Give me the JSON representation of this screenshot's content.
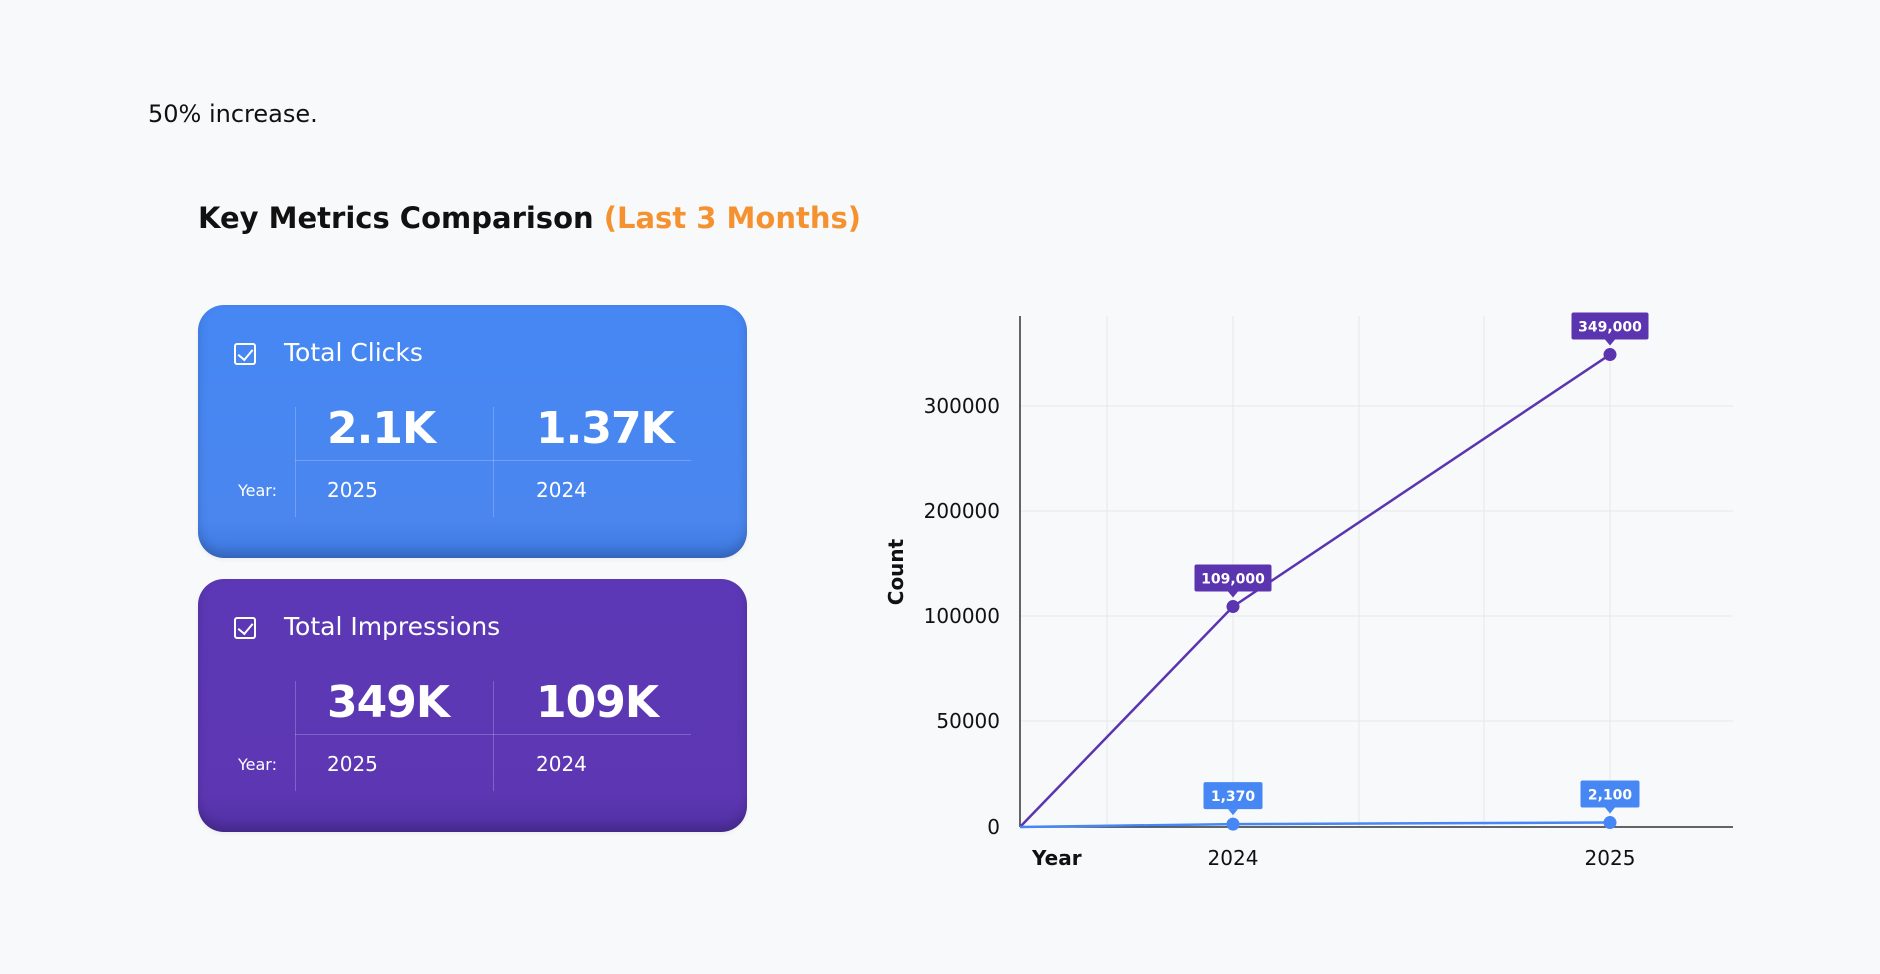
{
  "intro_text": "50% increase.",
  "section": {
    "title": "Key Metrics Comparison",
    "title_accent": "(Last 3 Months)",
    "accent_color": "#f5922f"
  },
  "cards": [
    {
      "title": "Total Clicks",
      "color": "#4687f4",
      "icon": "checkbox-checked-icon",
      "year_label": "Year:",
      "values": [
        "2.1K",
        "1.37K"
      ],
      "years": [
        "2025",
        "2024"
      ]
    },
    {
      "title": "Total Impressions",
      "color": "#5c38b6",
      "icon": "checkbox-checked-icon",
      "year_label": "Year:",
      "values": [
        "349K",
        "109K"
      ],
      "years": [
        "2025",
        "2024"
      ]
    }
  ],
  "chart_data": {
    "type": "line",
    "title": "",
    "xlabel": "Year",
    "ylabel": "Count",
    "x": [
      "2024",
      "2025"
    ],
    "y_ticks": [
      "0",
      "50000",
      "100000",
      "200000",
      "300000"
    ],
    "grid": true,
    "legend": "none",
    "series": [
      {
        "color": "#5b34b0",
        "values": [
          109000,
          349000
        ],
        "labels": [
          "109,000",
          "349,000"
        ]
      },
      {
        "color": "#4687f4",
        "values": [
          1370,
          2100
        ],
        "labels": [
          "1,370",
          "2,100"
        ]
      }
    ]
  }
}
